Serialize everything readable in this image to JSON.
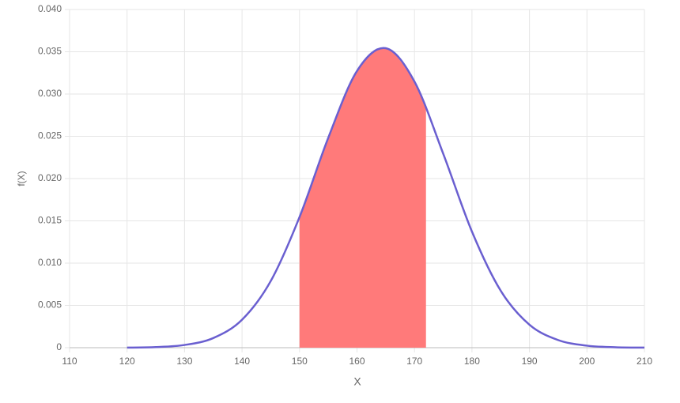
{
  "chart_data": {
    "type": "line",
    "xlabel": "X",
    "ylabel": "f(X)",
    "series": [
      {
        "color": "#ff7a7a",
        "fill": true,
        "x": [
          150,
          155,
          160,
          165,
          170,
          172
        ],
        "values": [
          0.01545,
          0.02482,
          0.03273,
          0.03542,
          0.03147,
          0.0284
        ]
      },
      {
        "color": "#6a5fd0",
        "fill": false,
        "x": [
          120,
          125,
          130,
          135,
          140,
          145,
          150,
          155,
          160,
          165,
          170,
          175,
          180,
          185,
          190,
          195,
          200,
          205,
          210
        ],
        "values": [
          1e-05,
          7e-05,
          0.00032,
          0.00114,
          0.00331,
          0.00789,
          0.01545,
          0.02482,
          0.03273,
          0.03542,
          0.03147,
          0.02294,
          0.01373,
          0.00674,
          0.00272,
          0.0009,
          0.00024,
          5e-05,
          1e-05
        ]
      }
    ],
    "xlim": [
      110,
      210
    ],
    "xticks": [
      110,
      120,
      130,
      140,
      150,
      160,
      170,
      180,
      190,
      200,
      210
    ],
    "ylim": [
      0,
      0.04
    ],
    "yticks": [
      0,
      0.005,
      {
        "value": 0.01,
        "label": "0.010"
      },
      0.015,
      {
        "value": 0.02,
        "label": "0.020"
      },
      0.025,
      {
        "value": 0.03,
        "label": "0.030"
      },
      0.035,
      {
        "value": 0.04,
        "label": "0.040"
      }
    ],
    "grid": true
  }
}
